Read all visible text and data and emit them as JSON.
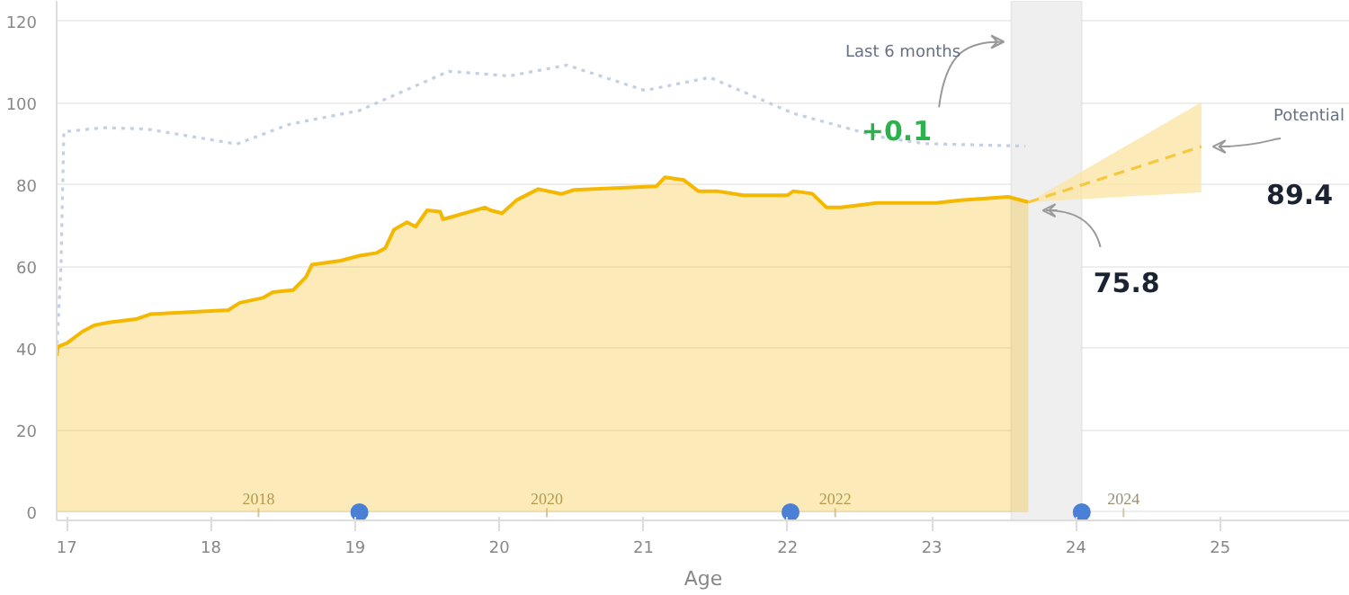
{
  "chart_data": {
    "type": "area",
    "xlabel": "Age",
    "xlim": [
      16.93,
      25.9
    ],
    "xticks": [
      17,
      18,
      19,
      20,
      21,
      22,
      23,
      24,
      25
    ],
    "ylim": [
      -2,
      125
    ],
    "yticks": [
      0,
      20,
      40,
      60,
      80,
      100,
      120
    ],
    "x2lim": [
      2016.6,
      2025.57
    ],
    "x2ticks": [
      2018,
      2020,
      2022,
      2024
    ],
    "grid": "y",
    "series": [
      {
        "color": "#f5b800",
        "x": [
          16.93,
          16.94,
          17.0,
          17.11,
          17.19,
          17.29,
          17.48,
          17.58,
          18.12,
          18.2,
          18.36,
          18.43,
          18.57,
          18.66,
          18.7,
          18.9,
          19.03,
          19.15,
          19.21,
          19.27,
          19.36,
          19.42,
          19.5,
          19.59,
          19.61,
          19.9,
          19.94,
          20.02,
          20.12,
          20.27,
          20.43,
          20.52,
          21.09,
          21.15,
          21.28,
          21.38,
          21.51,
          21.69,
          22.0,
          22.04,
          22.17,
          22.27,
          22.37,
          22.62,
          23.03,
          23.2,
          23.53,
          23.65,
          23.67
        ],
        "values": [
          38.3,
          40.5,
          41.3,
          44.2,
          45.7,
          46.4,
          47.2,
          48.4,
          49.4,
          51.2,
          52.4,
          53.8,
          54.3,
          57.5,
          60.5,
          61.5,
          62.7,
          63.4,
          64.6,
          69.1,
          70.9,
          69.8,
          73.8,
          73.5,
          71.6,
          74.5,
          73.8,
          73.1,
          76.3,
          79.0,
          77.8,
          78.8,
          79.7,
          81.9,
          81.2,
          78.5,
          78.5,
          77.5,
          77.5,
          78.5,
          77.9,
          74.5,
          74.5,
          75.6,
          75.6,
          76.3,
          77.1,
          76.0,
          75.8
        ]
      },
      {
        "type": "line",
        "line_style": "dotted",
        "color": "#c3cfe2",
        "x": [
          16.93,
          16.96,
          16.98,
          17.25,
          17.55,
          18.18,
          18.54,
          19.03,
          19.65,
          20.02,
          20.06,
          20.47,
          21.01,
          21.46,
          22.04,
          22.63,
          22.95,
          23.65
        ],
        "values": [
          39,
          60,
          93,
          94,
          93.7,
          90,
          94.8,
          98.2,
          107.8,
          106.8,
          106.6,
          109.3,
          103.1,
          106.3,
          97.5,
          91.8,
          90.1,
          89.5
        ]
      },
      {
        "type": "line",
        "line_style": "dashed",
        "color": "#f5c842",
        "x": [
          23.67,
          24.87
        ],
        "values": [
          75.8,
          89.4
        ],
        "lower": [
          75.8,
          78.2
        ],
        "upper": [
          75.8,
          100.2
        ]
      },
      {
        "type": "scatter",
        "marker": "circle",
        "color": "#4a80d6",
        "x": [
          19.03,
          22.02,
          24.04
        ],
        "values": [
          0,
          0,
          0
        ]
      }
    ],
    "bands": [
      {
        "axis": "x",
        "from": 23.55,
        "to": 24.04,
        "color": "#efefef"
      }
    ],
    "annotations": [
      "Last 6 months",
      "+0.1",
      "Potential",
      {
        "text": "89.4",
        "x": 24.87,
        "y": 89.4
      },
      "75.8"
    ]
  }
}
